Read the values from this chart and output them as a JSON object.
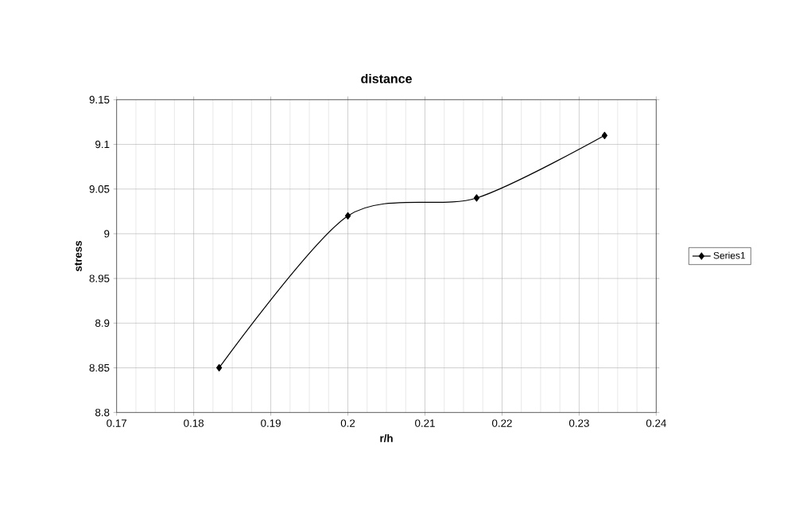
{
  "chart_data": {
    "type": "line",
    "title": "distance",
    "xlabel": "r/h",
    "ylabel": "stress",
    "x": [
      0.1833,
      0.2,
      0.2167,
      0.2333
    ],
    "series": [
      {
        "name": "Series1",
        "color": "#000000",
        "values": [
          8.85,
          9.02,
          9.04,
          9.11
        ]
      }
    ],
    "xlim": [
      0.17,
      0.24
    ],
    "xticks": [
      0.17,
      0.18,
      0.19,
      0.2,
      0.21,
      0.22,
      0.23,
      0.24
    ],
    "ylim": [
      8.8,
      9.15
    ],
    "yticks": [
      8.8,
      8.85,
      8.9,
      8.95,
      9,
      9.05,
      9.1,
      9.15
    ],
    "grid": true,
    "legend": "right",
    "marker": "diamond",
    "line_style": "solid"
  }
}
